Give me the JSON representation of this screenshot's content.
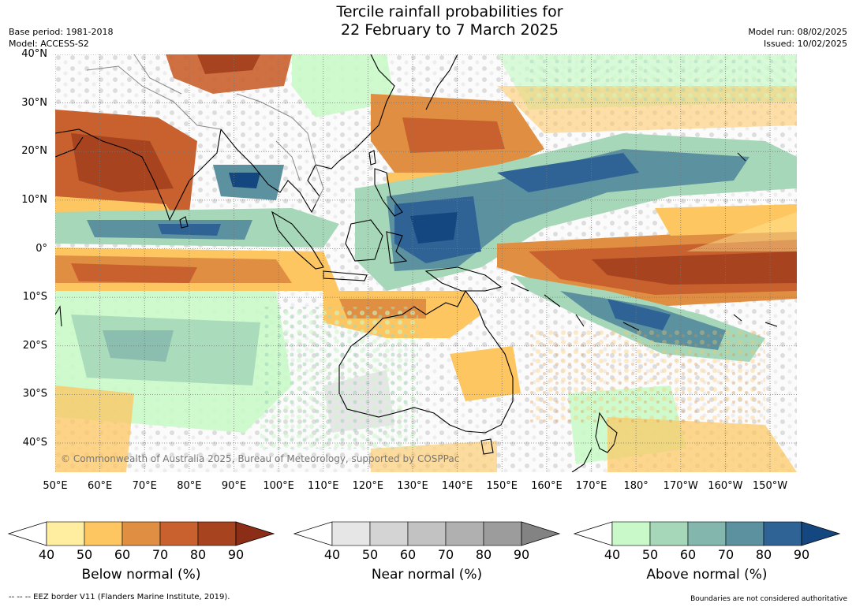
{
  "title": {
    "line1": "Tercile rainfall probabilities for",
    "line2": "22 February to 7 March 2025"
  },
  "meta": {
    "base_period": "Base period: 1981-2018",
    "model": "Model: ACCESS-S2",
    "model_run": "Model run: 08/02/2025",
    "issued": "Issued: 10/02/2025"
  },
  "map": {
    "lat_labels": [
      "40°N",
      "30°N",
      "20°N",
      "10°N",
      "0°",
      "10°S",
      "20°S",
      "30°S",
      "40°S"
    ],
    "lat_values": [
      40,
      30,
      20,
      10,
      0,
      -10,
      -20,
      -30,
      -40
    ],
    "lon_labels": [
      "50°E",
      "60°E",
      "70°E",
      "80°E",
      "90°E",
      "100°E",
      "110°E",
      "120°E",
      "130°E",
      "140°E",
      "150°E",
      "160°E",
      "170°E",
      "180°",
      "170°W",
      "160°W",
      "150°W"
    ],
    "lon_values": [
      50,
      60,
      70,
      80,
      90,
      100,
      110,
      120,
      130,
      140,
      150,
      160,
      170,
      180,
      190,
      200,
      210
    ],
    "lon_range": [
      50,
      216
    ],
    "lat_range": [
      -46,
      40
    ],
    "copyright": "© Commonwealth of Australia 2025, Bureau of Meteorology, supported by COSPPac",
    "grid": true
  },
  "colorbars": [
    {
      "label": "Below normal (%)",
      "ticks": [
        "40",
        "50",
        "60",
        "70",
        "80",
        "90"
      ],
      "colors": [
        "#ffeea0",
        "#fdc660",
        "#e08f42",
        "#c9612e",
        "#a7431f",
        "#8b2d17"
      ]
    },
    {
      "label": "Near normal (%)",
      "ticks": [
        "40",
        "50",
        "60",
        "70",
        "80",
        "90"
      ],
      "colors": [
        "#e6e6e6",
        "#d4d4d4",
        "#c2c2c2",
        "#b0b0b0",
        "#9c9c9c",
        "#838383"
      ]
    },
    {
      "label": "Above normal (%)",
      "ticks": [
        "40",
        "50",
        "60",
        "70",
        "80",
        "90"
      ],
      "colors": [
        "#c9f9c9",
        "#a6d7b9",
        "#83b7ad",
        "#5c91a0",
        "#2f6396",
        "#14467f"
      ]
    }
  ],
  "footer": {
    "left": "--  --  -- EEZ border V11 (Flanders Marine Institute, 2019).",
    "right": "Boundaries are not considered authoritative"
  }
}
